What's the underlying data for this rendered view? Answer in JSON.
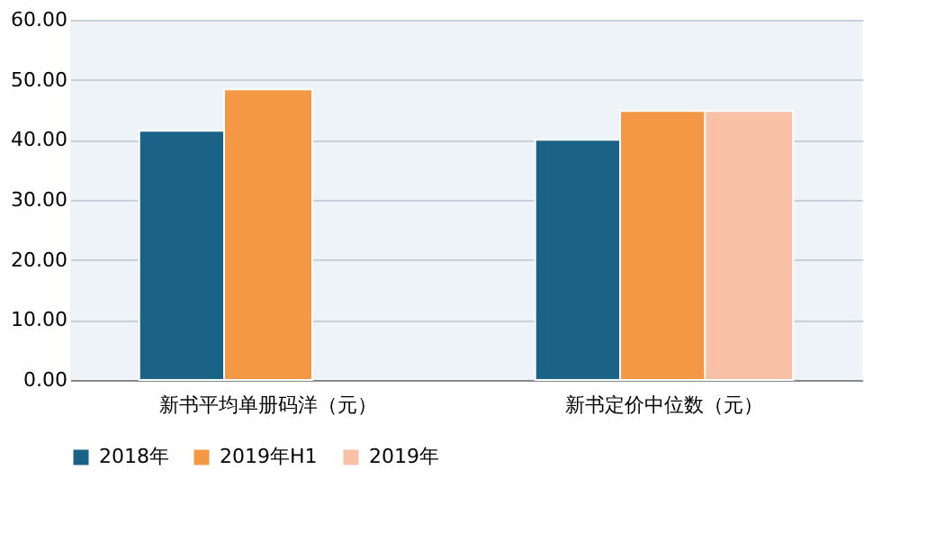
{
  "chart_data": {
    "type": "bar",
    "categories": [
      "新书平均单册码洋（元）",
      "新书定价中位数（元）"
    ],
    "series": [
      {
        "name": "2018年",
        "color": "#1b6386",
        "values": [
          41.5,
          40.0
        ]
      },
      {
        "name": "2019年H1",
        "color": "#f59845",
        "values": [
          48.4,
          44.8
        ]
      },
      {
        "name": "2019年",
        "color": "#f8c1a6",
        "values": [
          null,
          44.8
        ]
      }
    ],
    "ylim": [
      0,
      60
    ],
    "yticks": [
      {
        "value": 0,
        "label": "0.00"
      },
      {
        "value": 10,
        "label": "10.00"
      },
      {
        "value": 20,
        "label": "20.00"
      },
      {
        "value": 30,
        "label": "30.00"
      },
      {
        "value": 40,
        "label": "40.00"
      },
      {
        "value": 50,
        "label": "50.00"
      },
      {
        "value": 60,
        "label": "60.00"
      }
    ],
    "grid": "y",
    "legend": "bottom"
  }
}
